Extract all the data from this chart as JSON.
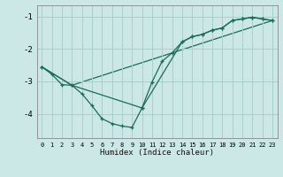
{
  "xlabel": "Humidex (Indice chaleur)",
  "bg_color": "#cce8e6",
  "grid_color": "#aacfcc",
  "line_color": "#1a6b5a",
  "xlim": [
    -0.5,
    23.5
  ],
  "ylim": [
    -4.75,
    -0.65
  ],
  "yticks": [
    -4,
    -3,
    -2,
    -1
  ],
  "xticks": [
    0,
    1,
    2,
    3,
    4,
    5,
    6,
    7,
    8,
    9,
    10,
    11,
    12,
    13,
    14,
    15,
    16,
    17,
    18,
    19,
    20,
    21,
    22,
    23
  ],
  "series1_x": [
    0,
    1,
    2,
    3,
    4,
    5,
    6,
    7,
    8,
    9,
    10,
    11,
    12,
    13,
    14,
    15,
    16,
    17,
    18,
    19,
    20,
    21,
    22,
    23
  ],
  "series1_y": [
    -2.55,
    -2.78,
    -3.1,
    -3.12,
    -3.38,
    -3.75,
    -4.15,
    -4.3,
    -4.38,
    -4.42,
    -3.82,
    -3.02,
    -2.38,
    -2.12,
    -1.78,
    -1.62,
    -1.55,
    -1.42,
    -1.35,
    -1.12,
    -1.07,
    -1.02,
    -1.07,
    -1.12
  ],
  "series2_x": [
    0,
    3,
    10,
    14,
    15,
    16,
    17,
    18,
    19,
    20,
    21,
    22,
    23
  ],
  "series2_y": [
    -2.55,
    -3.12,
    -3.82,
    -1.78,
    -1.62,
    -1.55,
    -1.42,
    -1.35,
    -1.12,
    -1.07,
    -1.02,
    -1.07,
    -1.12
  ],
  "series3_x": [
    0,
    3,
    23
  ],
  "series3_y": [
    -2.55,
    -3.12,
    -1.12
  ]
}
